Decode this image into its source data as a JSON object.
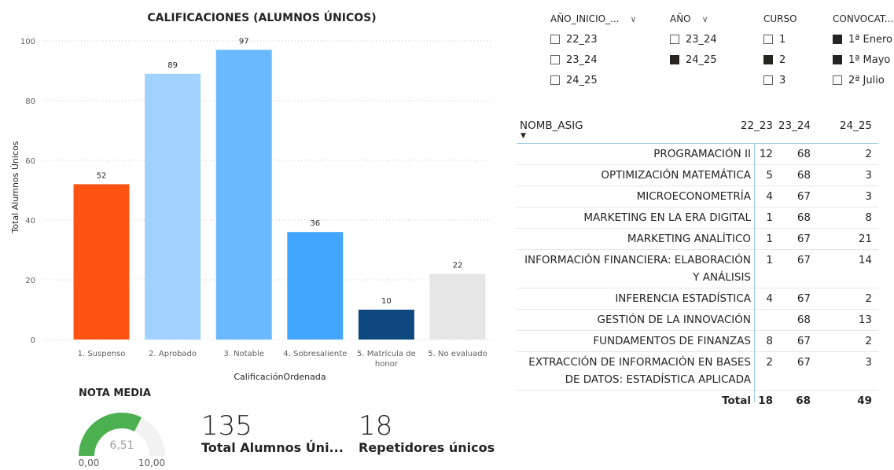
{
  "chart_data": {
    "type": "bar",
    "title": "CALIFICACIONES (ALUMNOS ÚNICOS)",
    "xlabel": "CalificaciónOrdenada",
    "ylabel": "Total Alumnos Únicos",
    "ylim": [
      0,
      100
    ],
    "yticks": [
      0,
      20,
      40,
      60,
      80,
      100
    ],
    "categories": [
      "1. Suspenso",
      "2. Aprobado",
      "3. Notable",
      "4. Sobresaliente",
      "5. Matrícula de honor",
      "5. No evaluado"
    ],
    "category_lines": [
      [
        "1. Suspenso"
      ],
      [
        "2. Aprobado"
      ],
      [
        "3. Notable"
      ],
      [
        "4. Sobresaliente"
      ],
      [
        "5. Matrícula de",
        "honor"
      ],
      [
        "5. No evaluado"
      ]
    ],
    "values": [
      52,
      89,
      97,
      36,
      10,
      22
    ],
    "colors": [
      "#fe5412",
      "#a0d1ff",
      "#6ab9ff",
      "#42a5ff",
      "#0e487e",
      "#e6e6e6"
    ],
    "grid": true
  },
  "slicers": [
    {
      "title": "AÑO_INICIO_...",
      "has_chevron": true,
      "items": [
        {
          "label": "22_23",
          "checked": false
        },
        {
          "label": "23_24",
          "checked": false
        },
        {
          "label": "24_25",
          "checked": false
        }
      ]
    },
    {
      "title": "AÑO",
      "has_chevron": true,
      "items": [
        {
          "label": "23_24",
          "checked": false
        },
        {
          "label": "24_25",
          "checked": true
        }
      ]
    },
    {
      "title": "CURSO",
      "has_chevron": false,
      "items": [
        {
          "label": "1",
          "checked": false
        },
        {
          "label": "2",
          "checked": true
        },
        {
          "label": "3",
          "checked": false
        }
      ]
    },
    {
      "title": "CONVOCAT...",
      "has_chevron": false,
      "items": [
        {
          "label": "1ª Enero",
          "checked": true
        },
        {
          "label": "1ª Mayo",
          "checked": true
        },
        {
          "label": "2ª Julio",
          "checked": false
        }
      ]
    }
  ],
  "table": {
    "row_header": "NOMB_ASIG",
    "columns": [
      "22_23",
      "23_24",
      "24_25"
    ],
    "rows": [
      {
        "name": "PROGRAMACIÓN II",
        "values": [
          "12",
          "68",
          "2"
        ]
      },
      {
        "name": "OPTIMIZACIÓN MATEMÁTICA",
        "values": [
          "5",
          "68",
          "3"
        ]
      },
      {
        "name": "MICROECONOMETRÍA",
        "values": [
          "4",
          "67",
          "3"
        ]
      },
      {
        "name": "MARKETING EN LA ERA DIGITAL",
        "values": [
          "1",
          "68",
          "8"
        ]
      },
      {
        "name": "MARKETING ANALÍTICO",
        "values": [
          "1",
          "67",
          "21"
        ]
      },
      {
        "name": "INFORMACIÓN FINANCIERA: ELABORACIÓN Y ANÁLISIS",
        "lines": [
          "INFORMACIÓN FINANCIERA: ELABORACIÓN",
          "Y ANÁLISIS"
        ],
        "values": [
          "1",
          "67",
          "14"
        ]
      },
      {
        "name": "INFERENCIA ESTADÍSTICA",
        "values": [
          "4",
          "67",
          "2"
        ]
      },
      {
        "name": "GESTIÓN DE LA INNOVACIÓN",
        "values": [
          "",
          "68",
          "13"
        ]
      },
      {
        "name": "FUNDAMENTOS DE FINANZAS",
        "values": [
          "8",
          "67",
          "2"
        ]
      },
      {
        "name": "EXTRACCIÓN DE INFORMACIÓN EN BASES DE DATOS: ESTADÍSTICA APLICADA",
        "lines": [
          "EXTRACCIÓN DE INFORMACIÓN EN BASES",
          "DE DATOS: ESTADÍSTICA APLICADA"
        ],
        "values": [
          "2",
          "67",
          "3"
        ]
      }
    ],
    "total": {
      "label": "Total",
      "values": [
        "18",
        "68",
        "49"
      ]
    }
  },
  "gauge": {
    "title": "NOTA MEDIA",
    "value": 6.51,
    "value_text": "6,51",
    "min_text": "0,00",
    "max_text": "10,00",
    "min": 0,
    "max": 10,
    "fill_color": "#4cb050",
    "track_color": "#f2f2f2"
  },
  "cards": [
    {
      "value": "135",
      "label": "Total Alumnos Úni..."
    },
    {
      "value": "18",
      "label": "Repetidores únicos"
    }
  ]
}
